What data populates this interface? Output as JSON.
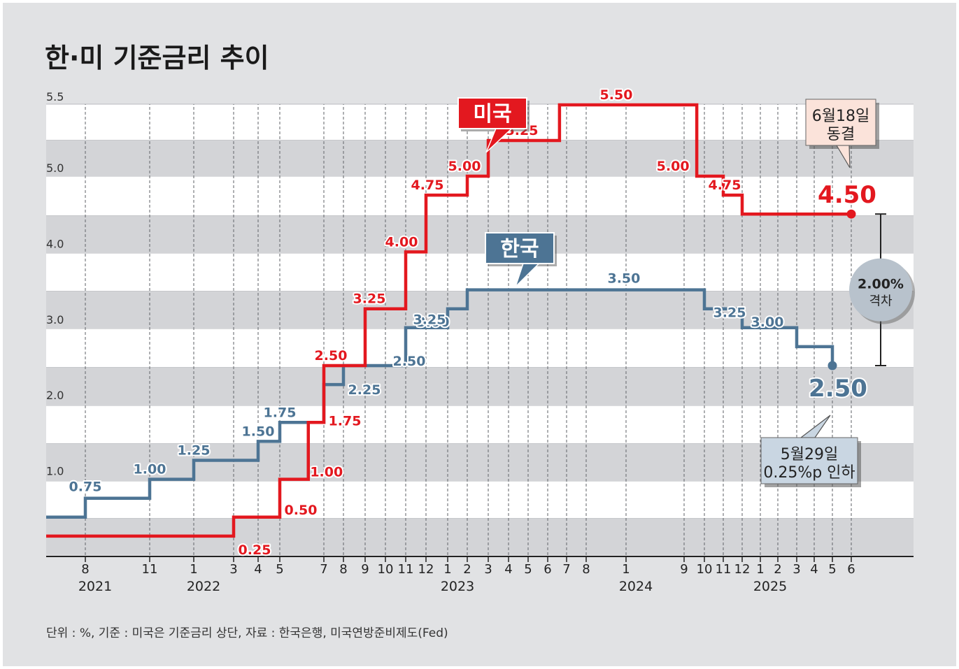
{
  "title": "한·미 기준금리 추이",
  "source_note": "단위 : %, 기준 : 미국은 기준금리 상단, 자료 : 한국은행, 미국연방준비제도(Fed)",
  "colors": {
    "us": "#e3181f",
    "kr": "#4d7494",
    "background": "#e1e2e4",
    "band_light": "#ffffff",
    "band_dark": "#d3d4d7"
  },
  "chart_data": {
    "type": "line",
    "step": true,
    "title": "한·미 기준금리 추이",
    "unit": "%",
    "y_ticks": [
      {
        "value": 1.0,
        "label": "1.0"
      },
      {
        "value": 2.0,
        "label": "2.0"
      },
      {
        "value": 3.0,
        "label": "3.0"
      },
      {
        "value": 4.0,
        "label": "4.0"
      },
      {
        "value": 5.0,
        "label": "5.0"
      },
      {
        "value": 5.5,
        "label": "5.5"
      }
    ],
    "x_ticks": [
      {
        "t": 2021.58,
        "label": "8"
      },
      {
        "t": 2021.83,
        "label": "11"
      },
      {
        "t": 2022.0,
        "label": "1"
      },
      {
        "t": 2022.17,
        "label": "3"
      },
      {
        "t": 2022.25,
        "label": "4"
      },
      {
        "t": 2022.33,
        "label": "5"
      },
      {
        "t": 2022.5,
        "label": "7"
      },
      {
        "t": 2022.58,
        "label": "8"
      },
      {
        "t": 2022.67,
        "label": "9"
      },
      {
        "t": 2022.75,
        "label": "10"
      },
      {
        "t": 2022.83,
        "label": "11"
      },
      {
        "t": 2022.92,
        "label": "12"
      },
      {
        "t": 2023.0,
        "label": "1"
      },
      {
        "t": 2023.08,
        "label": "2"
      },
      {
        "t": 2023.17,
        "label": "3"
      },
      {
        "t": 2023.25,
        "label": "4"
      },
      {
        "t": 2023.33,
        "label": "5"
      },
      {
        "t": 2023.42,
        "label": "6"
      },
      {
        "t": 2023.5,
        "label": "7"
      },
      {
        "t": 2023.58,
        "label": "8"
      },
      {
        "t": 2024.0,
        "label": "1"
      },
      {
        "t": 2024.67,
        "label": "9"
      },
      {
        "t": 2024.75,
        "label": "10"
      },
      {
        "t": 2024.83,
        "label": "11"
      },
      {
        "t": 2024.92,
        "label": "12"
      },
      {
        "t": 2025.0,
        "label": "1"
      },
      {
        "t": 2025.08,
        "label": "2"
      },
      {
        "t": 2025.17,
        "label": "3"
      },
      {
        "t": 2025.25,
        "label": "4"
      },
      {
        "t": 2025.33,
        "label": "5"
      },
      {
        "t": 2025.42,
        "label": "6"
      }
    ],
    "year_labels": [
      {
        "t": 2021.58,
        "label": "2021"
      },
      {
        "t": 2022.0,
        "label": "2022"
      },
      {
        "t": 2023.0,
        "label": "2023"
      },
      {
        "t": 2024.0,
        "label": "2024"
      },
      {
        "t": 2025.0,
        "label": "2025"
      }
    ],
    "series": [
      {
        "name": "미국",
        "color": "#e3181f",
        "points": [
          {
            "t": 2021.0,
            "v": 0.25
          },
          {
            "t": 2022.17,
            "v": 0.5
          },
          {
            "t": 2022.33,
            "v": 1.0
          },
          {
            "t": 2022.44,
            "v": 1.75
          },
          {
            "t": 2022.5,
            "v": 2.5
          },
          {
            "t": 2022.67,
            "v": 3.25
          },
          {
            "t": 2022.83,
            "v": 4.0
          },
          {
            "t": 2022.92,
            "v": 4.75
          },
          {
            "t": 2023.08,
            "v": 5.0
          },
          {
            "t": 2023.17,
            "v": 5.25
          },
          {
            "t": 2023.47,
            "v": 5.5
          },
          {
            "t": 2024.72,
            "v": 5.0
          },
          {
            "t": 2024.83,
            "v": 4.75
          },
          {
            "t": 2024.92,
            "v": 4.5
          },
          {
            "t": 2025.42,
            "v": 4.5
          }
        ],
        "labels": [
          {
            "t": 2022.17,
            "v": 0.25,
            "text": "0.25"
          },
          {
            "t": 2022.33,
            "v": 0.5,
            "text": "0.50"
          },
          {
            "t": 2022.44,
            "v": 1.0,
            "text": "1.00"
          },
          {
            "t": 2022.5,
            "v": 1.75,
            "text": "1.75"
          },
          {
            "t": 2022.5,
            "v": 2.5,
            "text": "2.50"
          },
          {
            "t": 2022.67,
            "v": 3.25,
            "text": "3.25"
          },
          {
            "t": 2022.83,
            "v": 4.0,
            "text": "4.00"
          },
          {
            "t": 2022.92,
            "v": 4.75,
            "text": "4.75"
          },
          {
            "t": 2023.08,
            "v": 5.0,
            "text": "5.00"
          },
          {
            "t": 2023.17,
            "v": 5.25,
            "text": "5.25"
          },
          {
            "t": 2024.0,
            "v": 5.5,
            "text": "5.50"
          },
          {
            "t": 2024.72,
            "v": 5.0,
            "text": "5.00"
          },
          {
            "t": 2024.83,
            "v": 4.75,
            "text": "4.75"
          }
        ],
        "end_label": "4.50",
        "callout": "6월18일\n동결"
      },
      {
        "name": "한국",
        "color": "#4d7494",
        "points": [
          {
            "t": 2021.0,
            "v": 0.5
          },
          {
            "t": 2021.58,
            "v": 0.75
          },
          {
            "t": 2021.83,
            "v": 1.0
          },
          {
            "t": 2022.0,
            "v": 1.25
          },
          {
            "t": 2022.25,
            "v": 1.5
          },
          {
            "t": 2022.33,
            "v": 1.75
          },
          {
            "t": 2022.5,
            "v": 2.25
          },
          {
            "t": 2022.58,
            "v": 2.5
          },
          {
            "t": 2022.83,
            "v": 3.0
          },
          {
            "t": 2023.0,
            "v": 3.25
          },
          {
            "t": 2023.08,
            "v": 3.5
          },
          {
            "t": 2024.75,
            "v": 3.25
          },
          {
            "t": 2024.92,
            "v": 3.0
          },
          {
            "t": 2025.17,
            "v": 2.75
          },
          {
            "t": 2025.33,
            "v": 2.5
          }
        ],
        "labels": [
          {
            "t": 2021.58,
            "v": 0.75,
            "text": "0.75"
          },
          {
            "t": 2021.83,
            "v": 1.0,
            "text": "1.00"
          },
          {
            "t": 2022.0,
            "v": 1.25,
            "text": "1.25"
          },
          {
            "t": 2022.25,
            "v": 1.5,
            "text": "1.50"
          },
          {
            "t": 2022.33,
            "v": 1.75,
            "text": "1.75"
          },
          {
            "t": 2022.58,
            "v": 2.25,
            "text": "2.25"
          },
          {
            "t": 2022.75,
            "v": 2.5,
            "text": "2.50"
          },
          {
            "t": 2022.92,
            "v": 3.0,
            "text": "3.00"
          },
          {
            "t": 2023.0,
            "v": 3.25,
            "text": "3.25"
          },
          {
            "t": 2023.83,
            "v": 3.5,
            "text": "3.50"
          },
          {
            "t": 2024.75,
            "v": 3.25,
            "text": "3.25"
          },
          {
            "t": 2025.0,
            "v": 3.0,
            "text": "3.00"
          }
        ],
        "end_label": "2.50",
        "callout": "5월29일\n0.25%p 인하"
      }
    ],
    "gap": {
      "value": "2.00%",
      "label": "격차"
    }
  }
}
